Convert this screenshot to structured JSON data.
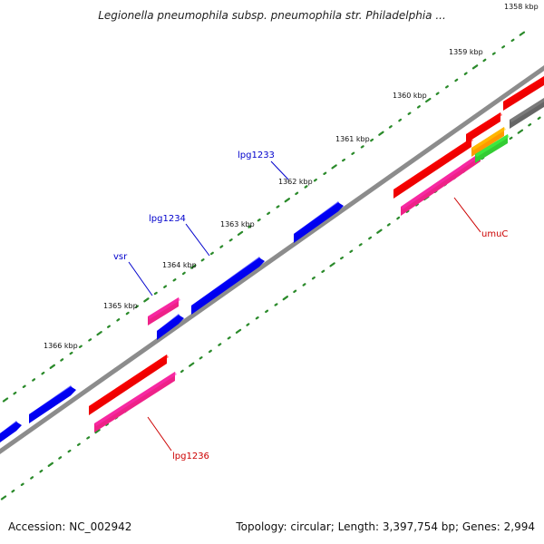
{
  "title": "Legionella pneumophila subsp. pneumophila str. Philadelphia ...",
  "footer": {
    "accession": "Accession: NC_002942",
    "summary": "Topology: circular; Length: 3,397,754 bp; Genes: 2,994"
  },
  "colors": {
    "backbone": "#8c8c8c",
    "tick": "#2a8a2a",
    "blue_gene": "#0000ee",
    "red_gene": "#ee0000",
    "pink_gene": "#ee2288",
    "gray_gene": "#666666",
    "orange_gene": "#ff9900",
    "green_gene": "#33cc33",
    "blue_label": "#0000cc",
    "red_label": "#cc0000"
  },
  "ticks": [
    {
      "label": "1358 kbp"
    },
    {
      "label": "1359 kbp"
    },
    {
      "label": "1360 kbp"
    },
    {
      "label": "1361 kbp"
    },
    {
      "label": "1362 kbp"
    },
    {
      "label": "1363 kbp"
    },
    {
      "label": "1364 kbp"
    },
    {
      "label": "1365 kbp"
    },
    {
      "label": "1366 kbp"
    }
  ],
  "gene_labels": [
    {
      "text": "lpg1233",
      "color": "blue"
    },
    {
      "text": "lpg1234",
      "color": "blue"
    },
    {
      "text": "vsr",
      "color": "blue"
    },
    {
      "text": "umuC",
      "color": "red"
    },
    {
      "text": "lpg1236",
      "color": "red"
    }
  ]
}
